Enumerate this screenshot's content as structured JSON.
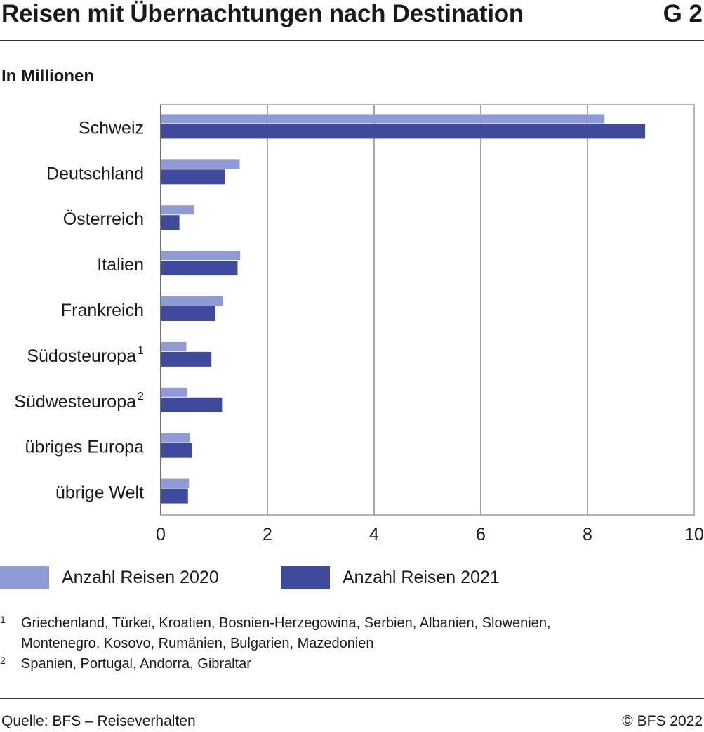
{
  "header": {
    "title": "Reisen mit Übernachtungen nach Destination",
    "figure_number": "G 2"
  },
  "chart_data": {
    "type": "bar",
    "orientation": "horizontal",
    "title": "Reisen mit Übernachtungen nach Destination",
    "unit_label": "In Millionen",
    "categories": [
      "Schweiz",
      "Deutschland",
      "Österreich",
      "Italien",
      "Frankreich",
      "Südosteuropa",
      "Südwesteuropa",
      "übriges Europa",
      "übrige Welt"
    ],
    "category_footnotes": [
      "",
      "",
      "",
      "",
      "",
      "1",
      "2",
      "",
      ""
    ],
    "series": [
      {
        "name": "Anzahl Reisen 2020",
        "color": "#8e9bd6",
        "values": [
          8.32,
          1.48,
          0.62,
          1.49,
          1.17,
          0.48,
          0.49,
          0.54,
          0.53
        ]
      },
      {
        "name": "Anzahl Reisen 2021",
        "color": "#404a9c",
        "values": [
          9.08,
          1.2,
          0.35,
          1.44,
          1.02,
          0.95,
          1.15,
          0.58,
          0.51
        ]
      }
    ],
    "xlim": [
      0,
      10
    ],
    "xticks": [
      0,
      2,
      4,
      6,
      8,
      10
    ],
    "xtick_labels": [
      "0",
      "2",
      "4",
      "6",
      "8",
      "10"
    ],
    "grid": "vertical",
    "legend_position": "bottom"
  },
  "footnotes": [
    {
      "mark": "1",
      "lines": [
        "Griechenland, Türkei, Kroatien, Bosnien-Herzegowina, Serbien, Albanien, Slowenien,",
        "Montenegro, Kosovo, Rumänien, Bulgarien, Mazedonien"
      ]
    },
    {
      "mark": "2",
      "lines": [
        "Spanien, Portugal, Andorra, Gibraltar"
      ]
    }
  ],
  "footer": {
    "source": "Quelle: BFS – Reiseverhalten",
    "copyright": "© BFS 2022"
  }
}
